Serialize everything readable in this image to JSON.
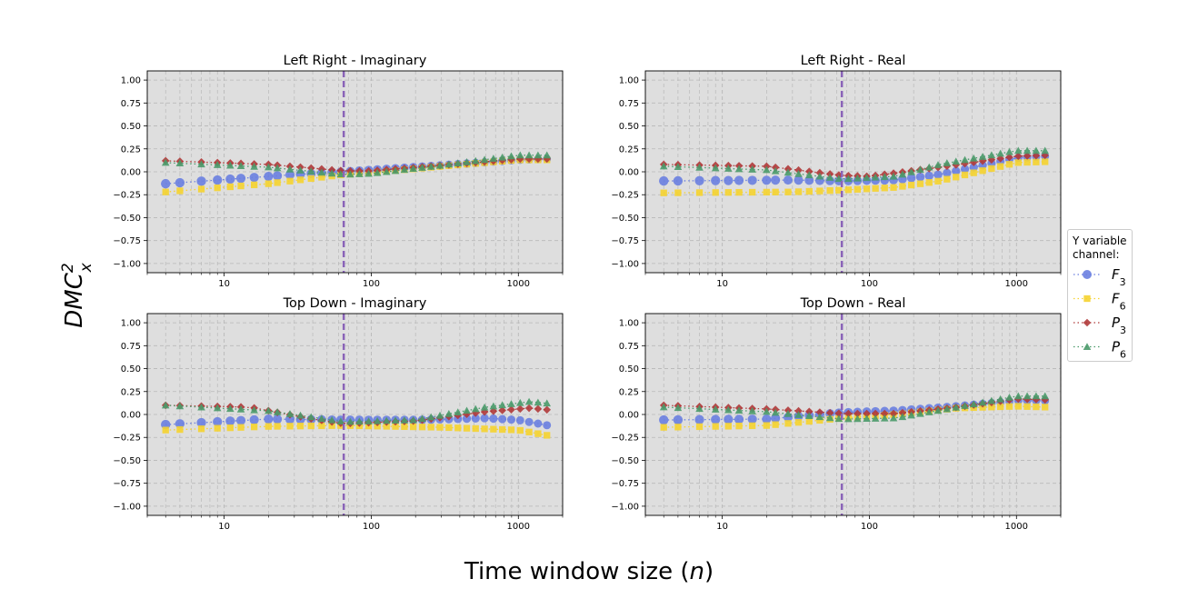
{
  "figure": {
    "xlabel": "Time window size (n)",
    "ylabel": "DMC²ₓ",
    "ylabel_base": "DMC",
    "ylabel_sup": "2",
    "ylabel_sub": "x",
    "xlabel_main": "Time window size (",
    "xlabel_var": "n",
    "xlabel_end": ")"
  },
  "legend": {
    "title_line1": "Y variable",
    "title_line2": "channel:",
    "entries": [
      {
        "label": "F₃",
        "base": "F",
        "sub": "3",
        "marker": "circle",
        "color": "#6a7fe0"
      },
      {
        "label": "F₆",
        "base": "F",
        "sub": "6",
        "marker": "square",
        "color": "#f5d330"
      },
      {
        "label": "P₃",
        "base": "P",
        "sub": "3",
        "marker": "diamond",
        "color": "#b03a3a"
      },
      {
        "label": "P₆",
        "base": "P",
        "sub": "6",
        "marker": "triangle",
        "color": "#4a9a6a"
      }
    ]
  },
  "chart_data": [
    {
      "type": "scatter",
      "title": "Left Right - Imaginary",
      "xscale": "log",
      "xlim": [
        3,
        2000
      ],
      "ylim": [
        -1.1,
        1.1
      ],
      "xticks": [
        10,
        100,
        1000
      ],
      "xtick_labels": [
        "10",
        "100",
        "1000"
      ],
      "yticks": [
        1.0,
        0.75,
        0.5,
        0.25,
        0.0,
        -0.25,
        -0.5,
        -0.75,
        -1.0
      ],
      "ytick_labels": [
        "1.00",
        "0.75",
        "0.50",
        "0.25",
        "0.00",
        "−0.25",
        "−0.50",
        "−0.75",
        "−1.00"
      ],
      "vline": 65,
      "grid": true,
      "series": [
        {
          "name": "F₃",
          "anchors": [
            [
              4,
              -0.13
            ],
            [
              30,
              -0.03
            ],
            [
              65,
              0.0
            ],
            [
              100,
              0.02
            ],
            [
              300,
              0.07
            ],
            [
              1000,
              0.13
            ],
            [
              1600,
              0.14
            ]
          ]
        },
        {
          "name": "F₆",
          "anchors": [
            [
              4,
              -0.22
            ],
            [
              20,
              -0.13
            ],
            [
              65,
              -0.03
            ],
            [
              100,
              -0.01
            ],
            [
              300,
              0.06
            ],
            [
              1000,
              0.13
            ],
            [
              1600,
              0.13
            ]
          ]
        },
        {
          "name": "P₃",
          "anchors": [
            [
              4,
              0.12
            ],
            [
              20,
              0.08
            ],
            [
              65,
              0.01
            ],
            [
              100,
              0.01
            ],
            [
              300,
              0.07
            ],
            [
              1000,
              0.14
            ],
            [
              1600,
              0.14
            ]
          ]
        },
        {
          "name": "P₆",
          "anchors": [
            [
              4,
              0.1
            ],
            [
              20,
              0.05
            ],
            [
              65,
              -0.03
            ],
            [
              100,
              -0.02
            ],
            [
              300,
              0.07
            ],
            [
              1000,
              0.18
            ],
            [
              1600,
              0.18
            ]
          ]
        }
      ]
    },
    {
      "type": "scatter",
      "title": "Left Right - Real",
      "xscale": "log",
      "xlim": [
        3,
        2000
      ],
      "ylim": [
        -1.1,
        1.1
      ],
      "xticks": [
        10,
        100,
        1000
      ],
      "xtick_labels": [
        "10",
        "100",
        "1000"
      ],
      "yticks": [
        1.0,
        0.75,
        0.5,
        0.25,
        0.0,
        -0.25,
        -0.5,
        -0.75,
        -1.0
      ],
      "ytick_labels": [
        "1.00",
        "0.75",
        "0.50",
        "0.25",
        "0.00",
        "−0.25",
        "−0.50",
        "−0.75",
        "−1.00"
      ],
      "vline": 65,
      "grid": true,
      "series": [
        {
          "name": "F₃",
          "anchors": [
            [
              4,
              -0.1
            ],
            [
              30,
              -0.09
            ],
            [
              65,
              -0.1
            ],
            [
              150,
              -0.09
            ],
            [
              300,
              -0.03
            ],
            [
              1000,
              0.15
            ],
            [
              1600,
              0.17
            ]
          ]
        },
        {
          "name": "F₆",
          "anchors": [
            [
              4,
              -0.23
            ],
            [
              30,
              -0.22
            ],
            [
              65,
              -0.2
            ],
            [
              150,
              -0.17
            ],
            [
              300,
              -0.1
            ],
            [
              1000,
              0.1
            ],
            [
              1600,
              0.11
            ]
          ]
        },
        {
          "name": "P₃",
          "anchors": [
            [
              4,
              0.08
            ],
            [
              20,
              0.06
            ],
            [
              65,
              -0.04
            ],
            [
              100,
              -0.05
            ],
            [
              300,
              0.05
            ],
            [
              1000,
              0.17
            ],
            [
              1600,
              0.18
            ]
          ]
        },
        {
          "name": "P₆",
          "anchors": [
            [
              4,
              0.06
            ],
            [
              20,
              0.02
            ],
            [
              65,
              -0.08
            ],
            [
              150,
              -0.05
            ],
            [
              300,
              0.08
            ],
            [
              1000,
              0.23
            ],
            [
              1600,
              0.23
            ]
          ]
        }
      ]
    },
    {
      "type": "scatter",
      "title": "Top Down - Imaginary",
      "xscale": "log",
      "xlim": [
        3,
        2000
      ],
      "ylim": [
        -1.1,
        1.1
      ],
      "xticks": [
        10,
        100,
        1000
      ],
      "xtick_labels": [
        "10",
        "100",
        "1000"
      ],
      "yticks": [
        1.0,
        0.75,
        0.5,
        0.25,
        0.0,
        -0.25,
        -0.5,
        -0.75,
        -1.0
      ],
      "ytick_labels": [
        "1.00",
        "0.75",
        "0.50",
        "0.25",
        "0.00",
        "−0.25",
        "−0.50",
        "−0.75",
        "−1.00"
      ],
      "vline": 65,
      "grid": true,
      "series": [
        {
          "name": "F₃",
          "anchors": [
            [
              4,
              -0.11
            ],
            [
              20,
              -0.05
            ],
            [
              65,
              -0.06
            ],
            [
              200,
              -0.06
            ],
            [
              600,
              -0.04
            ],
            [
              1000,
              -0.06
            ],
            [
              1600,
              -0.12
            ]
          ]
        },
        {
          "name": "F₆",
          "anchors": [
            [
              4,
              -0.17
            ],
            [
              20,
              -0.13
            ],
            [
              65,
              -0.12
            ],
            [
              300,
              -0.14
            ],
            [
              1000,
              -0.17
            ],
            [
              1600,
              -0.23
            ]
          ]
        },
        {
          "name": "P₃",
          "anchors": [
            [
              4,
              0.1
            ],
            [
              15,
              0.08
            ],
            [
              40,
              -0.05
            ],
            [
              65,
              -0.1
            ],
            [
              200,
              -0.07
            ],
            [
              600,
              0.03
            ],
            [
              1200,
              0.07
            ],
            [
              1600,
              0.05
            ]
          ]
        },
        {
          "name": "P₆",
          "anchors": [
            [
              4,
              0.1
            ],
            [
              20,
              0.04
            ],
            [
              65,
              -0.08
            ],
            [
              200,
              -0.06
            ],
            [
              600,
              0.08
            ],
            [
              1200,
              0.14
            ],
            [
              1600,
              0.12
            ]
          ]
        }
      ]
    },
    {
      "type": "scatter",
      "title": "Top Down - Real",
      "xscale": "log",
      "xlim": [
        3,
        2000
      ],
      "ylim": [
        -1.1,
        1.1
      ],
      "xticks": [
        10,
        100,
        1000
      ],
      "xtick_labels": [
        "10",
        "100",
        "1000"
      ],
      "yticks": [
        1.0,
        0.75,
        0.5,
        0.25,
        0.0,
        -0.25,
        -0.5,
        -0.75,
        -1.0
      ],
      "ytick_labels": [
        "1.00",
        "0.75",
        "0.50",
        "0.25",
        "0.00",
        "−0.25",
        "−0.50",
        "−0.75",
        "−1.00"
      ],
      "vline": 65,
      "grid": true,
      "series": [
        {
          "name": "F₃",
          "anchors": [
            [
              4,
              -0.06
            ],
            [
              20,
              -0.05
            ],
            [
              65,
              0.02
            ],
            [
              150,
              0.04
            ],
            [
              400,
              0.09
            ],
            [
              1000,
              0.15
            ],
            [
              1600,
              0.15
            ]
          ]
        },
        {
          "name": "F₆",
          "anchors": [
            [
              4,
              -0.14
            ],
            [
              20,
              -0.12
            ],
            [
              65,
              -0.04
            ],
            [
              150,
              0.0
            ],
            [
              400,
              0.07
            ],
            [
              1000,
              0.09
            ],
            [
              1600,
              0.08
            ]
          ]
        },
        {
          "name": "P₃",
          "anchors": [
            [
              4,
              0.1
            ],
            [
              20,
              0.06
            ],
            [
              65,
              0.01
            ],
            [
              150,
              0.01
            ],
            [
              400,
              0.08
            ],
            [
              1000,
              0.17
            ],
            [
              1600,
              0.16
            ]
          ]
        },
        {
          "name": "P₆",
          "anchors": [
            [
              4,
              0.08
            ],
            [
              20,
              0.03
            ],
            [
              65,
              -0.05
            ],
            [
              150,
              -0.04
            ],
            [
              400,
              0.08
            ],
            [
              1000,
              0.2
            ],
            [
              1600,
              0.2
            ]
          ]
        }
      ]
    }
  ]
}
